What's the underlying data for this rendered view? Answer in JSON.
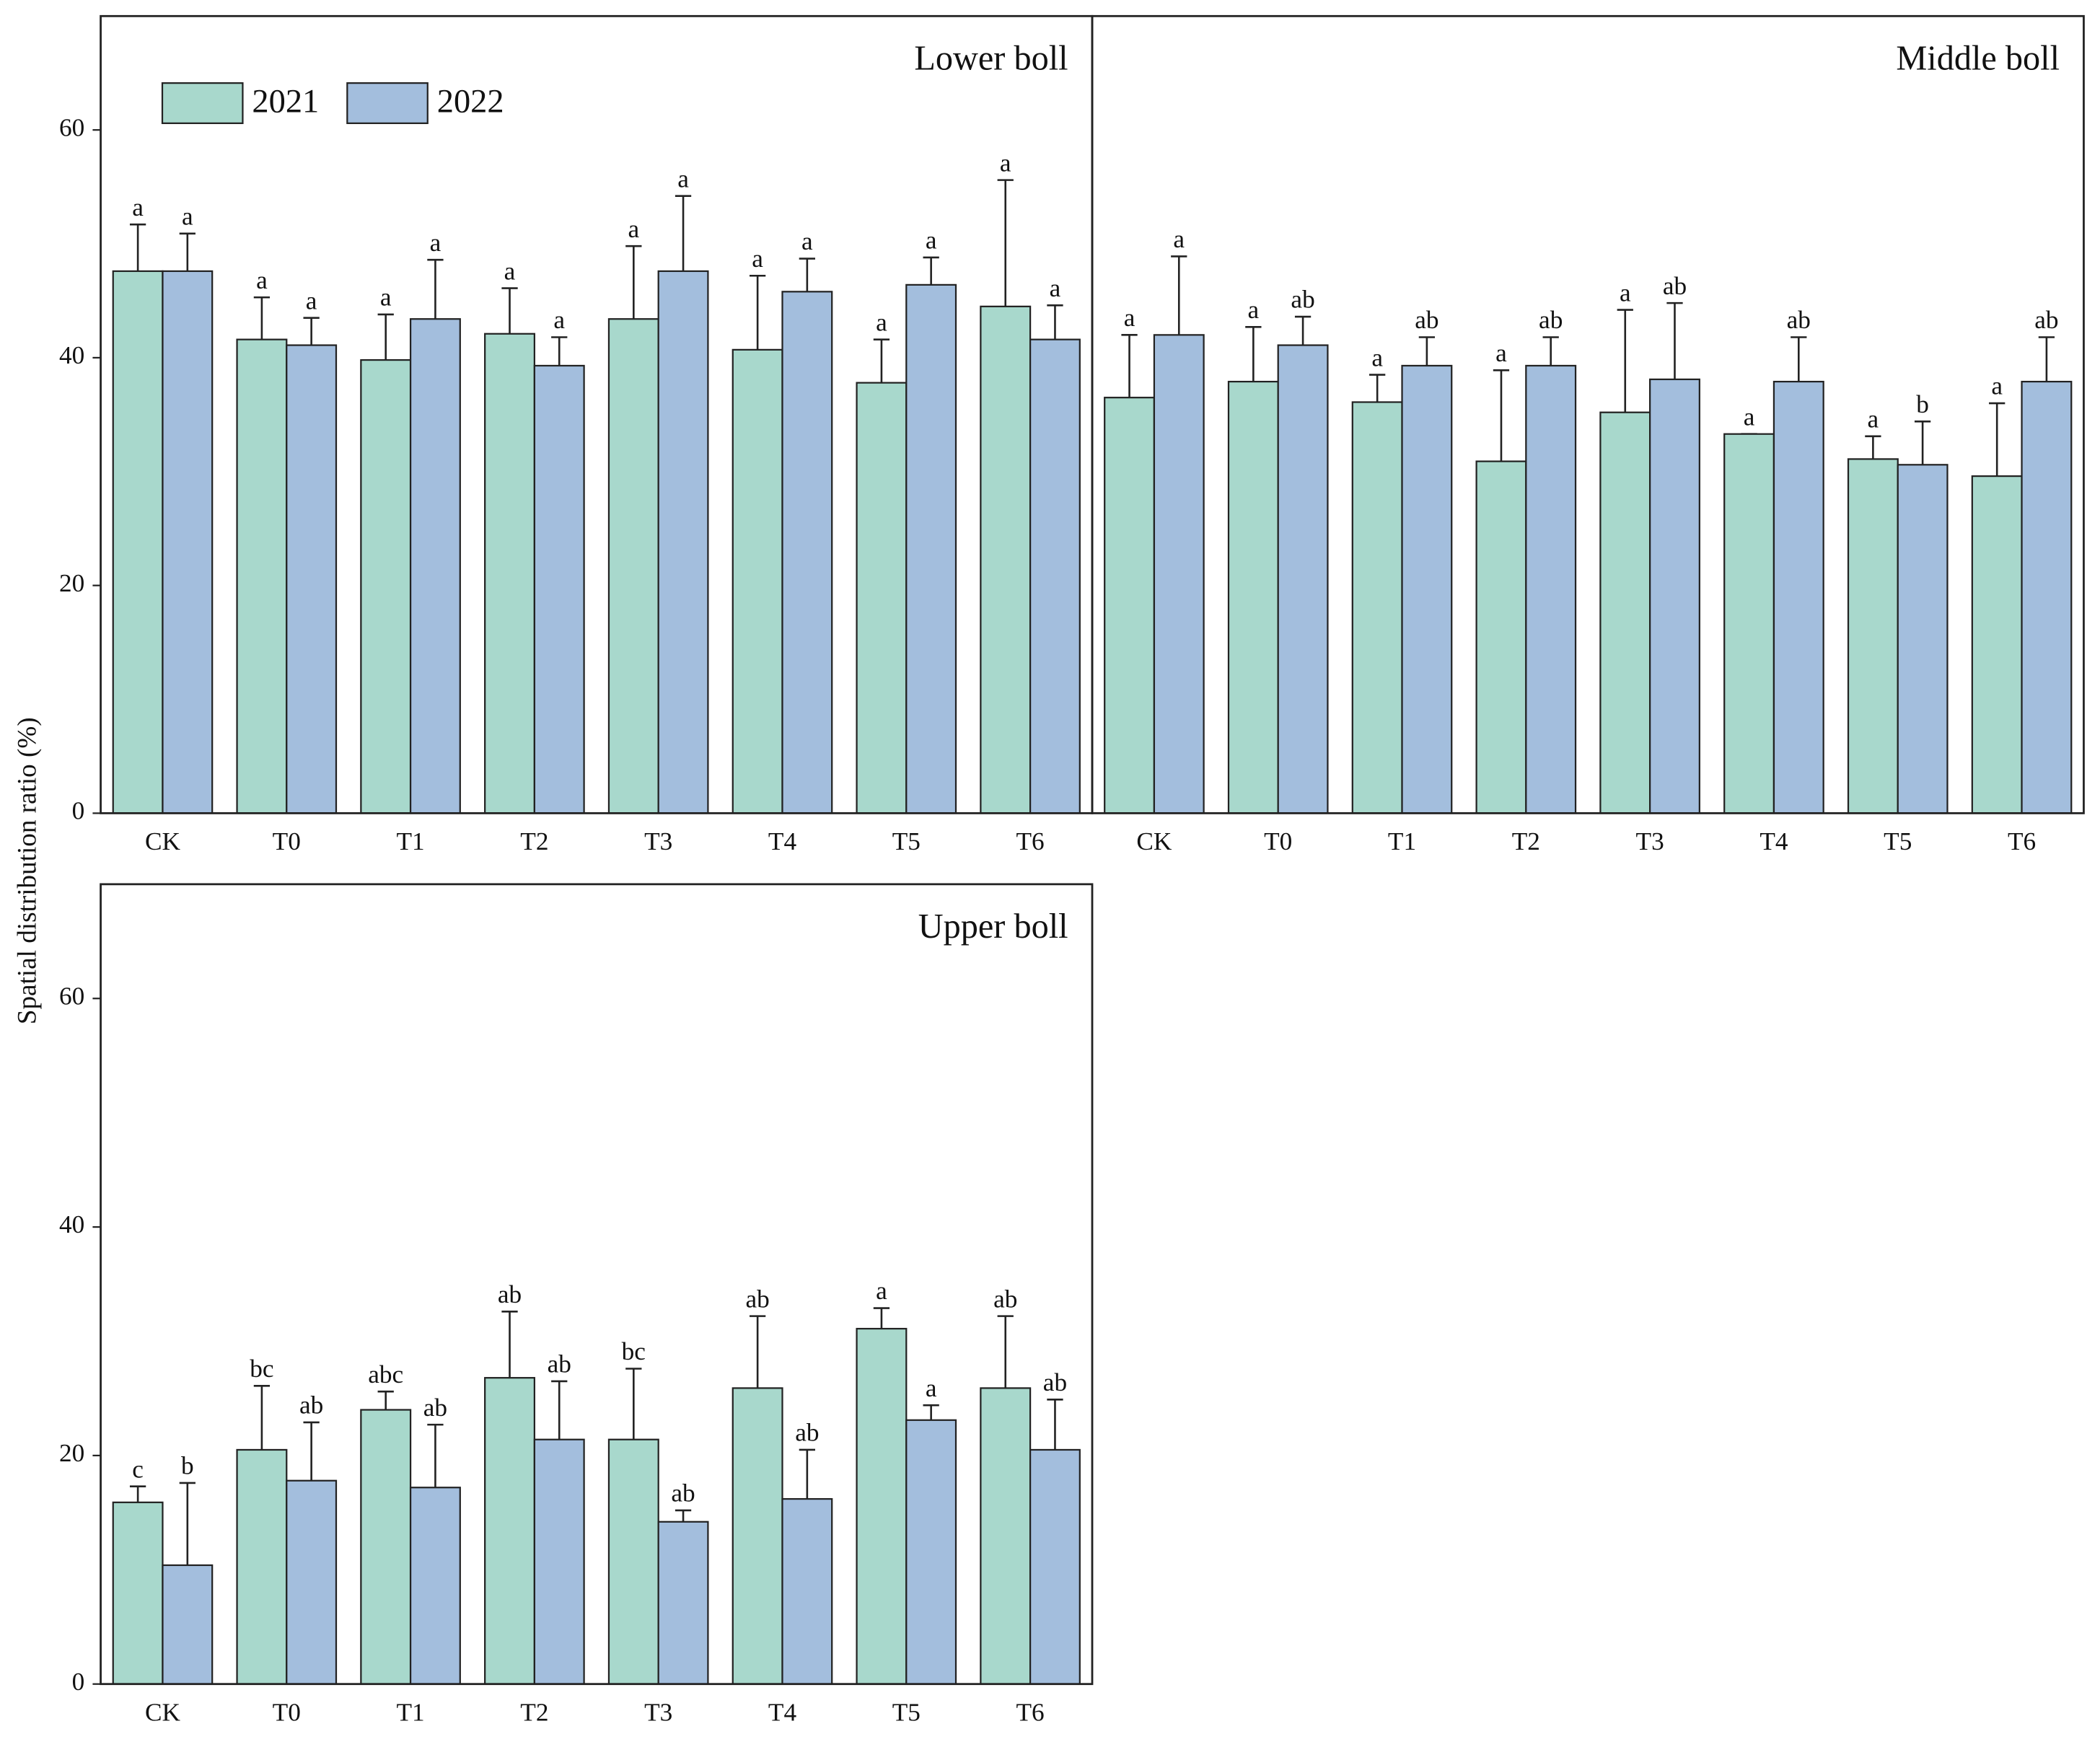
{
  "ylabel": "Spatial distribution ratio (%)",
  "chart_data": [
    {
      "type": "bar",
      "title": "Lower boll",
      "categories": [
        "CK",
        "T0",
        "T1",
        "T2",
        "T3",
        "T4",
        "T5",
        "T6"
      ],
      "ylim": [
        0,
        70
      ],
      "yticks": [
        0,
        20,
        40,
        60
      ],
      "legend": "upper left",
      "series": [
        {
          "name": "2021",
          "color": "#a8d8cc",
          "values": [
            47.6,
            41.6,
            39.8,
            42.1,
            43.4,
            40.7,
            37.8,
            44.5
          ],
          "errors": [
            4.1,
            3.7,
            4.0,
            4.0,
            6.4,
            6.5,
            3.8,
            11.1
          ],
          "letters": [
            "a",
            "a",
            "a",
            "a",
            "a",
            "a",
            "a",
            "a"
          ]
        },
        {
          "name": "2022",
          "color": "#a3bedd",
          "values": [
            47.6,
            41.1,
            43.4,
            39.3,
            47.6,
            45.8,
            46.4,
            41.6
          ],
          "errors": [
            3.3,
            2.4,
            5.2,
            2.5,
            6.6,
            2.9,
            2.4,
            3.0
          ],
          "letters": [
            "a",
            "a",
            "a",
            "a",
            "a",
            "a",
            "a",
            "a"
          ]
        }
      ]
    },
    {
      "type": "bar",
      "title": "Middle boll",
      "categories": [
        "CK",
        "T0",
        "T1",
        "T2",
        "T3",
        "T4",
        "T5",
        "T6"
      ],
      "ylim": [
        0,
        70
      ],
      "series": [
        {
          "color": "#a8d8cc",
          "values": [
            36.5,
            37.9,
            36.1,
            30.9,
            35.2,
            33.3,
            31.1,
            29.6
          ],
          "errors": [
            5.5,
            4.8,
            2.4,
            8.0,
            9.0,
            0,
            2.0,
            6.4
          ],
          "letters": [
            "a",
            "a",
            "a",
            "a",
            "a",
            "a",
            "a",
            "a"
          ]
        },
        {
          "color": "#a3bedd",
          "values": [
            42.0,
            41.1,
            39.3,
            39.3,
            38.1,
            37.9,
            30.6,
            37.9
          ],
          "errors": [
            6.9,
            2.5,
            2.5,
            2.5,
            6.7,
            3.9,
            3.8,
            3.9
          ],
          "letters": [
            "a",
            "ab",
            "ab",
            "ab",
            "ab",
            "ab",
            "b",
            "ab"
          ]
        }
      ]
    },
    {
      "type": "bar",
      "title": "Upper boll",
      "categories": [
        "CK",
        "T0",
        "T1",
        "T2",
        "T3",
        "T4",
        "T5",
        "T6"
      ],
      "ylim": [
        0,
        70
      ],
      "yticks": [
        0,
        20,
        40,
        60
      ],
      "series": [
        {
          "color": "#a8d8cc",
          "values": [
            15.9,
            20.5,
            24.0,
            26.8,
            21.4,
            25.9,
            31.1,
            25.9
          ],
          "errors": [
            1.4,
            5.6,
            1.6,
            5.8,
            6.2,
            6.3,
            1.8,
            6.3
          ],
          "letters": [
            "c",
            "bc",
            "abc",
            "ab",
            "bc",
            "ab",
            "a",
            "ab"
          ]
        },
        {
          "color": "#a3bedd",
          "values": [
            10.4,
            17.8,
            17.2,
            21.4,
            14.2,
            16.2,
            23.1,
            20.5
          ],
          "errors": [
            7.2,
            5.1,
            5.5,
            5.1,
            1.0,
            4.3,
            1.3,
            4.4
          ],
          "letters": [
            "b",
            "ab",
            "ab",
            "ab",
            "ab",
            "ab",
            "a",
            "ab"
          ]
        }
      ]
    }
  ]
}
